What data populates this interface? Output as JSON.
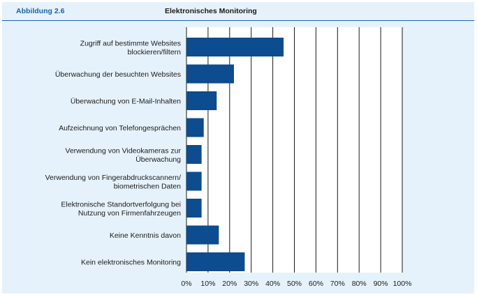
{
  "figure_label": "Abbildung 2.6",
  "colors": {
    "background": "#e6f2fb",
    "bar": "#0d4c8e",
    "header_rule": "#1a63a8",
    "grid": "#1a1a1a"
  },
  "chart_data": {
    "type": "bar",
    "orientation": "horizontal",
    "title": "Elektronisches Monitoring",
    "xlabel": "",
    "ylabel": "",
    "xlim": [
      0,
      100
    ],
    "grid": true,
    "categories": [
      [
        "Zugriff auf bestimmte Websites",
        "blockieren/filtern"
      ],
      [
        "Überwachung der besuchten Websites"
      ],
      [
        "Überwachung von E-Mail-Inhalten"
      ],
      [
        "Aufzeichnung von Telefongesprächen"
      ],
      [
        "Verwendung von Videokameras zur",
        "Überwachung"
      ],
      [
        "Verwendung von Fingerabdruckscannern/",
        "biometrischen Daten"
      ],
      [
        "Elektronische Standortverfolgung bei",
        "Nutzung von Firmenfahrzeugen"
      ],
      [
        "Keine Kenntnis davon"
      ],
      [
        "Kein elektronisches Monitoring"
      ]
    ],
    "values": [
      45,
      22,
      14,
      8,
      7,
      7,
      7,
      15,
      27
    ],
    "tick_labels": [
      "0%",
      "10%",
      "20%",
      "30%",
      "40%",
      "50%",
      "60%",
      "70%",
      "80%",
      "90%",
      "100%"
    ]
  }
}
